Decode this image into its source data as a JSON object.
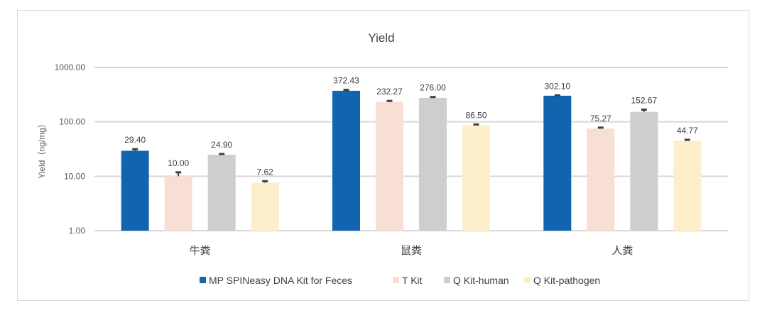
{
  "chart_data": {
    "type": "bar",
    "title": "Yield",
    "ylabel": "Yield（ng/mg）",
    "xlabel": "",
    "yscale": "log",
    "ylim": [
      1,
      1000
    ],
    "yticks": [
      "1.00",
      "10.00",
      "100.00",
      "1000.00"
    ],
    "grid": true,
    "legend_position": "bottom",
    "categories": [
      "牛粪",
      "鼠粪",
      "人粪"
    ],
    "series": [
      {
        "name": "MP SPINeasy DNA Kit for Feces",
        "color": "#1164ae",
        "values": [
          29.4,
          372.43,
          302.1
        ],
        "labels": [
          "29.40",
          "372.43",
          "302.10"
        ],
        "errors": [
          2,
          15,
          5
        ]
      },
      {
        "name": "T Kit",
        "color": "#f8dfd5",
        "values": [
          10.0,
          232.27,
          75.27
        ],
        "labels": [
          "10.00",
          "232.27",
          "75.27"
        ],
        "errors": [
          1.8,
          10,
          3
        ]
      },
      {
        "name": "Q Kit-human",
        "color": "#cfcdcf",
        "values": [
          24.9,
          276.0,
          152.67
        ],
        "labels": [
          "24.90",
          "276.00",
          "152.67"
        ],
        "errors": [
          0.8,
          10,
          15
        ]
      },
      {
        "name": "Q Kit-pathogen",
        "color": "#fcefc9",
        "values": [
          7.62,
          86.5,
          44.77
        ],
        "labels": [
          "7.62",
          "86.50",
          "44.77"
        ],
        "errors": [
          0.5,
          3,
          2
        ]
      }
    ]
  }
}
